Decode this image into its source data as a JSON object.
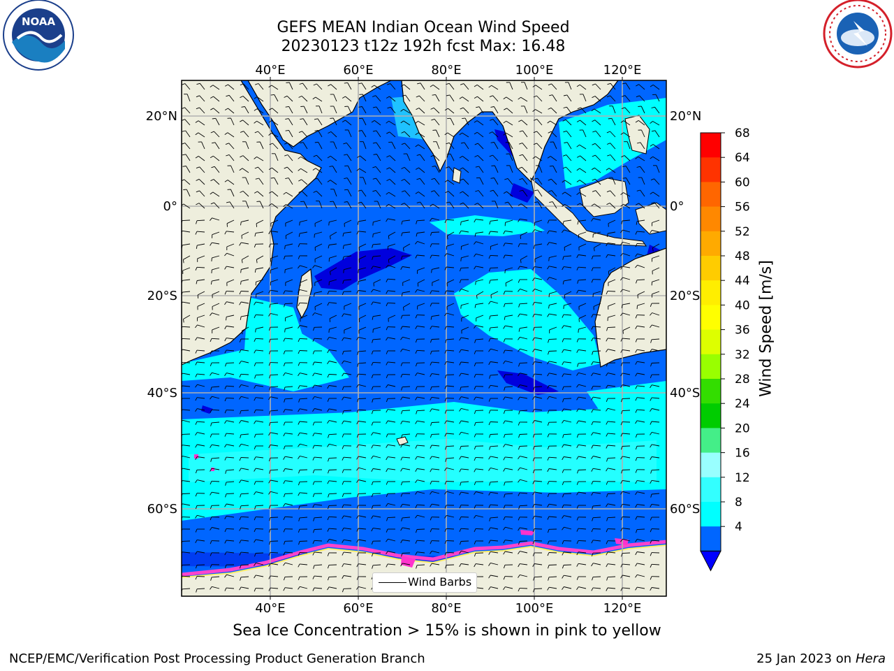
{
  "header": {
    "title_line1": "GEFS MEAN Indian Ocean Wind Speed",
    "title_line2": "20230123 t12z 192h fcst   Max: 16.48"
  },
  "logos": {
    "left": {
      "text": "NOAA",
      "icon": "noaa-logo-icon",
      "colors": {
        "ring": "#ffffff",
        "inner": "#1b3f8b",
        "wave": "#1a7fc1"
      }
    },
    "right": {
      "icon": "nws-logo-icon",
      "colors": {
        "ring": "#d4202a",
        "inner": "#1a62b5"
      }
    }
  },
  "map": {
    "lon_ticks_top": [
      "40°E",
      "60°E",
      "80°E",
      "100°E",
      "120°E"
    ],
    "lon_ticks_bottom": [
      "40°E",
      "60°E",
      "80°E",
      "100°E",
      "120°E"
    ],
    "lat_ticks_left": [
      "20°N",
      "0°",
      "20°S",
      "40°S",
      "60°S"
    ],
    "lat_ticks_right": [
      "20°N",
      "0°",
      "20°S",
      "40°S",
      "60°S"
    ],
    "land_color": "#eeeedd",
    "colors": {
      "ws_4_8": "#0066ff",
      "ws_8_12": "#00ffff",
      "ws_12_16": "#33ffff",
      "ws_under_4": "#0000dd"
    }
  },
  "legend": {
    "label": "Wind Barbs"
  },
  "colorbar": {
    "label": "Wind Speed [m/s]",
    "ticks": [
      "68",
      "64",
      "60",
      "56",
      "52",
      "48",
      "44",
      "40",
      "36",
      "32",
      "28",
      "24",
      "20",
      "16",
      "12",
      "8",
      "4"
    ],
    "colors": [
      "#ff0000",
      "#ff3300",
      "#ff6600",
      "#ff8800",
      "#ffaa00",
      "#ffcc00",
      "#ffee00",
      "#ffff00",
      "#ddff00",
      "#99ff00",
      "#33dd00",
      "#00cc00",
      "#44ee88",
      "#99ffff",
      "#33ffff",
      "#00ffff",
      "#0066ff"
    ],
    "under_color": "#0000ff"
  },
  "note": "Sea Ice Concentration > 15% is shown in pink to yellow",
  "footer": {
    "left": "NCEP/EMC/Verification Post Processing Product Generation Branch",
    "right_prefix": "25 Jan 2023 on ",
    "right_host": "Hera"
  }
}
